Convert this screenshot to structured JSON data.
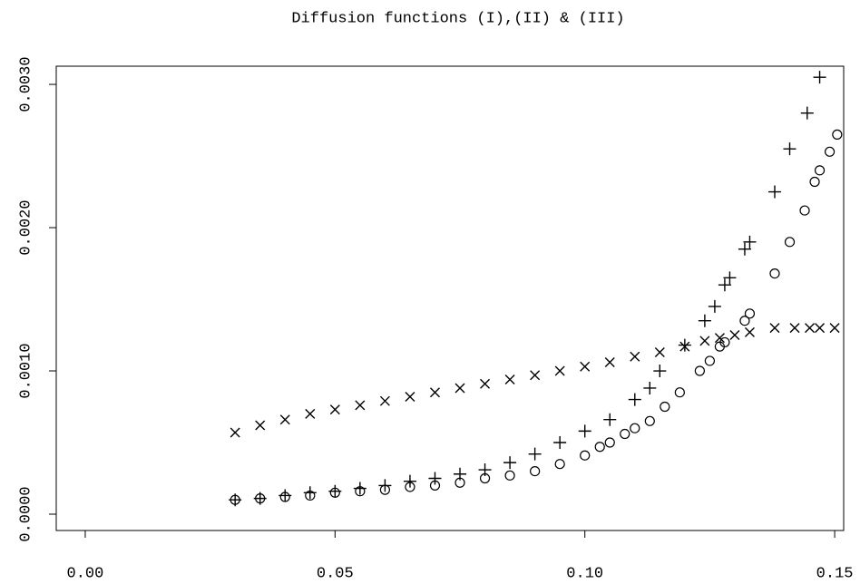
{
  "chart_data": {
    "type": "scatter",
    "title": "Diffusion functions (I),(II) & (III)",
    "xlim": [
      -0.0058,
      0.1518
    ],
    "ylim": [
      -0.000114,
      0.003127
    ],
    "xticks": [
      {
        "value": 0,
        "label": "0.00"
      },
      {
        "value": 0.05,
        "label": "0.05"
      },
      {
        "value": 0.1,
        "label": "0.10"
      },
      {
        "value": 0.15,
        "label": "0.15"
      }
    ],
    "yticks": [
      {
        "value": 0,
        "label": "0.0000"
      },
      {
        "value": 0.001,
        "label": "0.0010"
      },
      {
        "value": 0.002,
        "label": "0.0020"
      },
      {
        "value": 0.003,
        "label": "0.0030"
      }
    ],
    "series": [
      {
        "marker": "circle",
        "color": "#000000",
        "x": [
          0.03,
          0.035,
          0.04,
          0.045,
          0.05,
          0.055,
          0.06,
          0.065,
          0.07,
          0.075,
          0.08,
          0.085,
          0.09,
          0.095,
          0.1,
          0.103,
          0.105,
          0.108,
          0.11,
          0.113,
          0.116,
          0.119,
          0.123,
          0.125,
          0.127,
          0.128,
          0.132,
          0.133,
          0.138,
          0.141,
          0.144,
          0.146,
          0.147,
          0.149,
          0.1505
        ],
        "values": [
          0.0001,
          0.00011,
          0.00012,
          0.00013,
          0.00015,
          0.00016,
          0.00017,
          0.00019,
          0.0002,
          0.00022,
          0.00025,
          0.00027,
          0.0003,
          0.00035,
          0.00041,
          0.00047,
          0.0005,
          0.00056,
          0.0006,
          0.00065,
          0.00075,
          0.00085,
          0.001,
          0.00107,
          0.00117,
          0.0012,
          0.00135,
          0.0014,
          0.00168,
          0.0019,
          0.00212,
          0.00232,
          0.0024,
          0.00253,
          0.00265
        ]
      },
      {
        "marker": "plus",
        "color": "#000000",
        "x": [
          0.03,
          0.035,
          0.04,
          0.045,
          0.05,
          0.055,
          0.06,
          0.065,
          0.07,
          0.075,
          0.08,
          0.085,
          0.09,
          0.095,
          0.1,
          0.105,
          0.11,
          0.113,
          0.115,
          0.12,
          0.124,
          0.126,
          0.128,
          0.129,
          0.132,
          0.133,
          0.138,
          0.141,
          0.1445,
          0.147
        ],
        "values": [
          0.0001,
          0.00011,
          0.00013,
          0.00015,
          0.00016,
          0.00018,
          0.0002,
          0.00023,
          0.00025,
          0.00028,
          0.00031,
          0.00036,
          0.00042,
          0.0005,
          0.00058,
          0.00066,
          0.0008,
          0.00088,
          0.001,
          0.00118,
          0.00135,
          0.00145,
          0.0016,
          0.00165,
          0.00185,
          0.0019,
          0.00225,
          0.00255,
          0.0028,
          0.00305
        ]
      },
      {
        "marker": "cross",
        "color": "#000000",
        "x": [
          0.03,
          0.035,
          0.04,
          0.045,
          0.05,
          0.055,
          0.06,
          0.065,
          0.07,
          0.075,
          0.08,
          0.085,
          0.09,
          0.095,
          0.1,
          0.105,
          0.11,
          0.115,
          0.12,
          0.124,
          0.127,
          0.13,
          0.133,
          0.138,
          0.142,
          0.145,
          0.147,
          0.15
        ],
        "values": [
          0.00057,
          0.00062,
          0.00066,
          0.0007,
          0.00073,
          0.00076,
          0.00079,
          0.00082,
          0.00085,
          0.00088,
          0.00091,
          0.00094,
          0.00097,
          0.001,
          0.00103,
          0.00106,
          0.0011,
          0.00113,
          0.00117,
          0.00121,
          0.00123,
          0.00125,
          0.00127,
          0.0013,
          0.0013,
          0.0013,
          0.0013,
          0.0013
        ]
      }
    ]
  }
}
